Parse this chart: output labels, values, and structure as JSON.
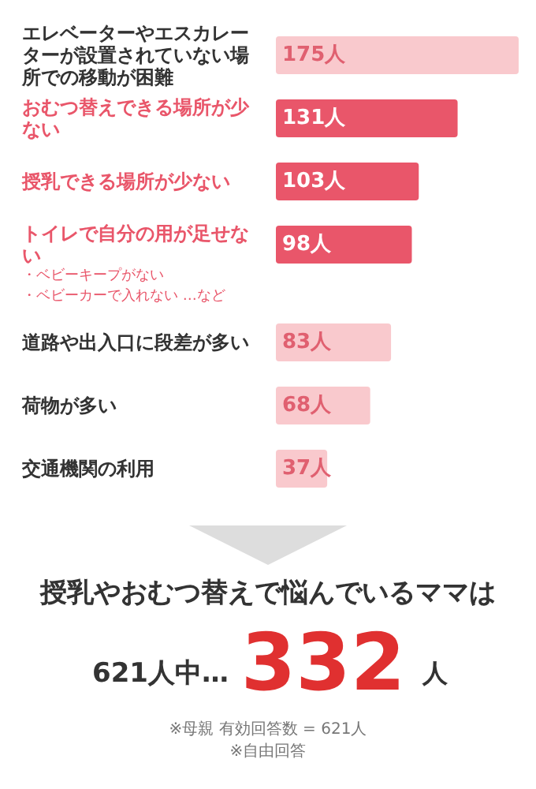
{
  "chart_data": {
    "type": "bar",
    "orientation": "horizontal",
    "categories": [
      "エレベーターやエスカレーターが設置されていない場所での移動が困難",
      "おむつ替えできる場所が少ない",
      "授乳できる場所が少ない",
      "トイレで自分の用が足せない",
      "道路や出入口に段差が多い",
      "荷物が多い",
      "交通機関の利用"
    ],
    "values": [
      175,
      131,
      103,
      98,
      83,
      68,
      37
    ],
    "colors": [
      "#f9c9cd",
      "#e9566a",
      "#e9566a",
      "#e9566a",
      "#f9c9cd",
      "#f9c9cd",
      "#f9c9cd"
    ],
    "value_labels": [
      "175人",
      "131人",
      "103人",
      "98人",
      "83人",
      "68人",
      "37人"
    ],
    "annotations": [
      "・ベビーキープがない",
      "・ベビーカーで入れない …など",
      "授乳やおむつ替えで悩んでいるママは",
      "621人中…",
      "332",
      "人",
      "※母親 有効回答数 = 621人",
      "※自由回答"
    ]
  }
}
